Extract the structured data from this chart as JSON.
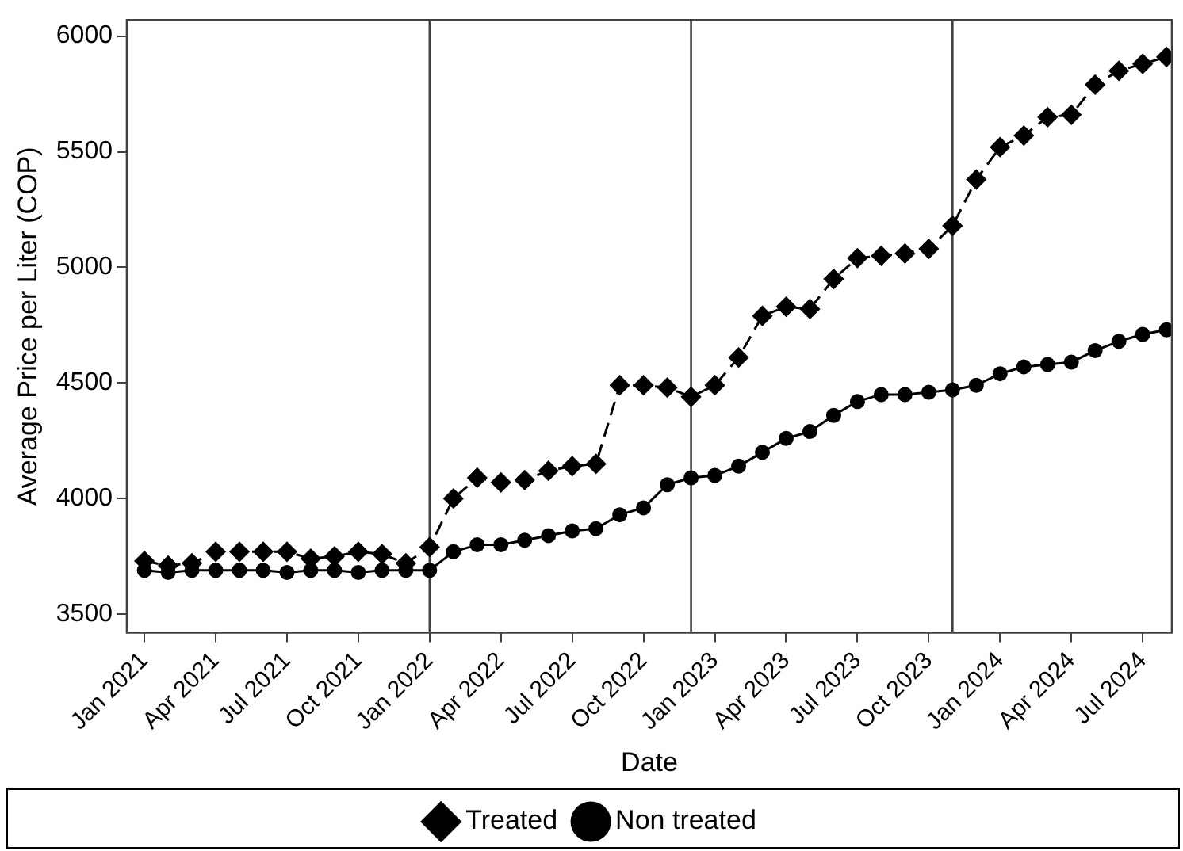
{
  "chart_data": {
    "type": "line",
    "xlabel": "Date",
    "ylabel": "Average Price per Liter (COP)",
    "x": [
      "2021-01",
      "2021-02",
      "2021-03",
      "2021-04",
      "2021-05",
      "2021-06",
      "2021-07",
      "2021-08",
      "2021-09",
      "2021-10",
      "2021-11",
      "2021-12",
      "2022-01",
      "2022-02",
      "2022-03",
      "2022-04",
      "2022-05",
      "2022-06",
      "2022-07",
      "2022-08",
      "2022-09",
      "2022-10",
      "2022-11",
      "2022-12",
      "2023-01",
      "2023-02",
      "2023-03",
      "2023-04",
      "2023-05",
      "2023-06",
      "2023-07",
      "2023-08",
      "2023-09",
      "2023-10",
      "2023-11",
      "2023-12",
      "2024-01",
      "2024-02",
      "2024-03",
      "2024-04",
      "2024-05",
      "2024-06",
      "2024-07",
      "2024-08"
    ],
    "series": [
      {
        "name": "Non treated",
        "color": "#000000",
        "marker": "circle",
        "line_style": "solid",
        "values": [
          3690,
          3680,
          3690,
          3690,
          3690,
          3690,
          3680,
          3690,
          3690,
          3680,
          3690,
          3690,
          3690,
          3770,
          3800,
          3800,
          3820,
          3840,
          3860,
          3870,
          3930,
          3960,
          4060,
          4090,
          4100,
          4140,
          4200,
          4260,
          4290,
          4360,
          4420,
          4450,
          4450,
          4460,
          4470,
          4490,
          4540,
          4570,
          4580,
          4590,
          4640,
          4680,
          4710,
          4730
        ]
      },
      {
        "name": "Treated",
        "color": "#000000",
        "marker": "diamond",
        "line_style": "dashed",
        "values": [
          3730,
          3710,
          3720,
          3770,
          3770,
          3770,
          3770,
          3740,
          3750,
          3770,
          3760,
          3720,
          3790,
          4000,
          4090,
          4070,
          4080,
          4120,
          4140,
          4150,
          4490,
          4490,
          4480,
          4440,
          4490,
          4610,
          4790,
          4830,
          4820,
          4950,
          5040,
          5050,
          5060,
          5080,
          5180,
          5380,
          5520,
          5570,
          5650,
          5660,
          5790,
          5850,
          5880,
          5910
        ]
      }
    ],
    "xlim": [
      "2020-12-09",
      "2024-08-08"
    ],
    "xticks": [
      {
        "value": "2021-01",
        "label": "Jan 2021"
      },
      {
        "value": "2021-04",
        "label": "Apr 2021"
      },
      {
        "value": "2021-07",
        "label": "Jul 2021"
      },
      {
        "value": "2021-10",
        "label": "Oct 2021"
      },
      {
        "value": "2022-01",
        "label": "Jan 2022"
      },
      {
        "value": "2022-04",
        "label": "Apr 2022"
      },
      {
        "value": "2022-07",
        "label": "Jul 2022"
      },
      {
        "value": "2022-10",
        "label": "Oct 2022"
      },
      {
        "value": "2023-01",
        "label": "Jan 2023"
      },
      {
        "value": "2023-04",
        "label": "Apr 2023"
      },
      {
        "value": "2023-07",
        "label": "Jul 2023"
      },
      {
        "value": "2023-10",
        "label": "Oct 2023"
      },
      {
        "value": "2024-01",
        "label": "Jan 2024"
      },
      {
        "value": "2024-04",
        "label": "Apr 2024"
      },
      {
        "value": "2024-07",
        "label": "Jul 2024"
      }
    ],
    "ylim": [
      3420,
      6070
    ],
    "yticks": [
      3500,
      4000,
      4500,
      5000,
      5500,
      6000
    ],
    "ref_lines": [
      {
        "axis": "x",
        "value": "2022-01",
        "color": "#404040"
      },
      {
        "axis": "x",
        "value": "2022-12",
        "color": "#404040"
      },
      {
        "axis": "x",
        "value": "2023-11",
        "color": "#404040"
      }
    ],
    "grid": false,
    "legend": "bottom"
  }
}
